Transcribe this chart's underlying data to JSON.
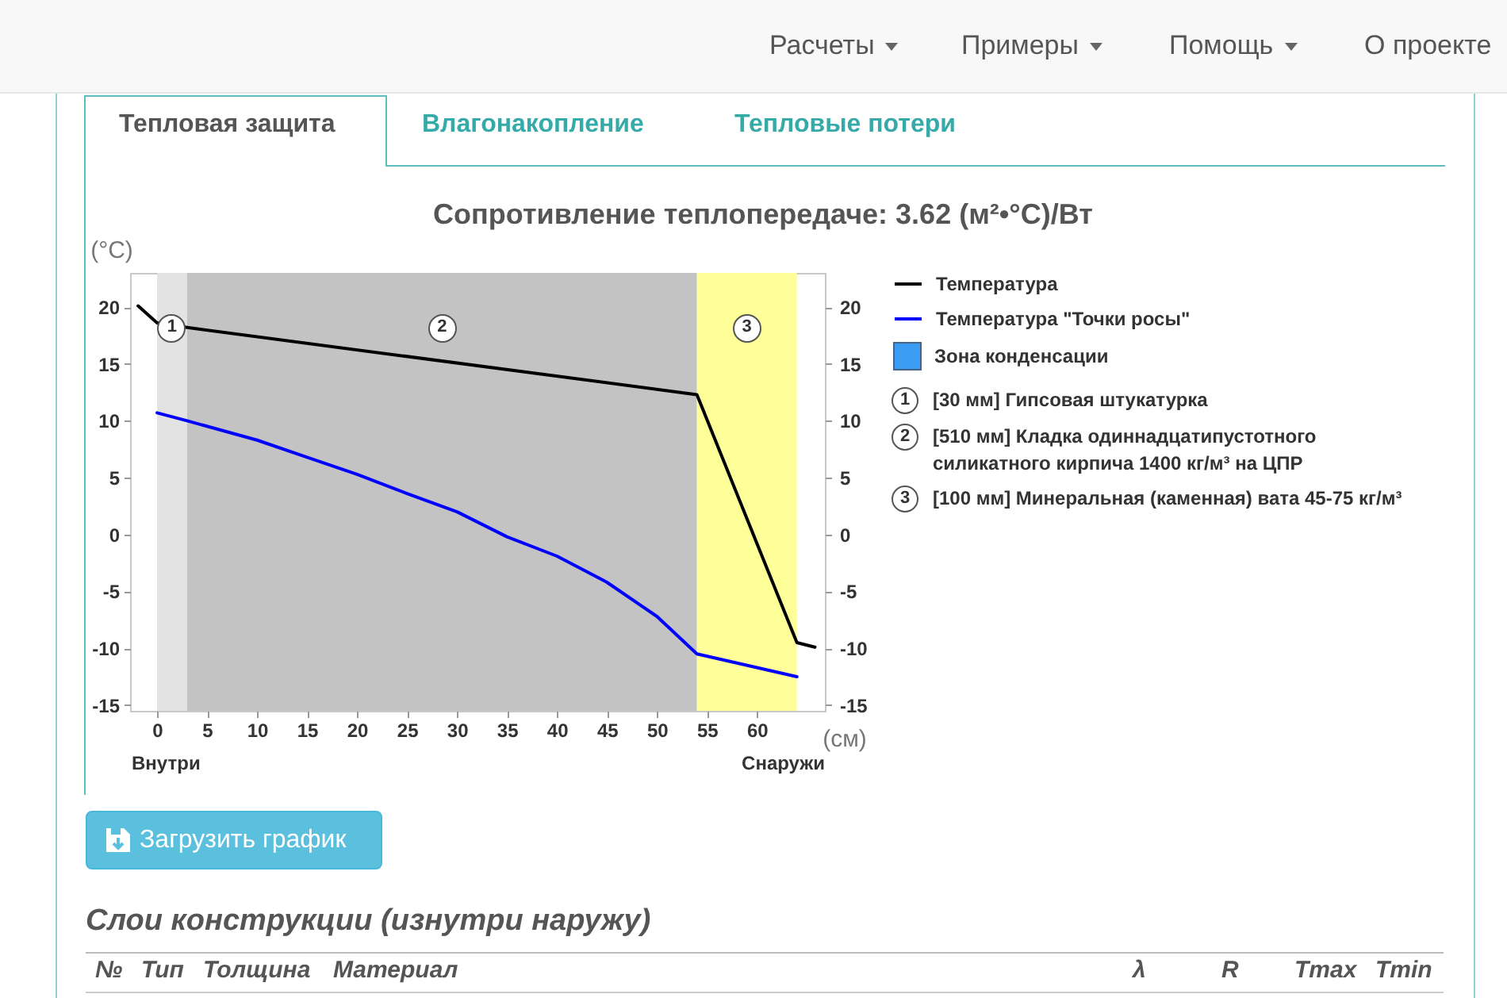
{
  "chart_data": {
    "type": "line",
    "title": "Сопротивление теплопередаче: 3.62 (м²•°C)/Вт",
    "xlabel": "(см)",
    "ylabel": "(°C)",
    "xlim": [
      -2.7,
      66.8
    ],
    "xticks": [
      0,
      5,
      10,
      15,
      20,
      25,
      30,
      35,
      40,
      45,
      50,
      55,
      60
    ],
    "ylim": [
      -15.5,
      23
    ],
    "yticks": [
      -15,
      -10,
      -5,
      0,
      5,
      10,
      15,
      20
    ],
    "y2lim": [
      -15.5,
      23
    ],
    "y2ticks": [
      -15,
      -10,
      -5,
      0,
      5,
      10,
      15,
      20
    ],
    "grid": false,
    "legend": "right",
    "series": [
      {
        "name": "Температура",
        "color": "#000000",
        "x": [
          -1.9,
          0,
          3,
          54,
          64,
          65.8
        ],
        "values": [
          20.1,
          18.6,
          18.2,
          12.3,
          -9.5,
          -9.9
        ]
      },
      {
        "name": "Температура \"Точки росы\"",
        "color": "#0000ff",
        "x": [
          0,
          3,
          10,
          15,
          20,
          25,
          30,
          35,
          40,
          45,
          50,
          54,
          64
        ],
        "values": [
          10.7,
          10.0,
          8.3,
          6.8,
          5.3,
          3.6,
          2.0,
          -0.2,
          -1.9,
          -4.2,
          -7.2,
          -10.5,
          -12.5
        ]
      },
      {
        "name": "Зона конденсации",
        "type": "area",
        "color": "#0a84f0"
      }
    ],
    "bands": [
      {
        "axis": "x",
        "from": 0,
        "to": 3,
        "label": "1",
        "color": "#e3e3e3"
      },
      {
        "axis": "x",
        "from": 3,
        "to": 54,
        "label": "2",
        "color": "#c3c3c3"
      },
      {
        "axis": "x",
        "from": 54,
        "to": 64,
        "label": "3",
        "color": "#ffff99"
      }
    ],
    "annotations": [
      "Расчеты",
      "Примеры",
      "Помощь",
      "О проекте",
      "Тепловая защита",
      "Влагонакопление",
      "Тепловые потери",
      "Внутри",
      "Снаружи",
      "[30 мм] Гипсовая штукатурка",
      "[510 мм] Кладка одиннадцатипустотного силикатного кирпича 1400 кг/м³ на ЦПР",
      "[100 мм] Минеральная (каменная) вата 45-75 кг/м³",
      "Загрузить график",
      "Слои конструкции (изнутри наружу)",
      "№",
      "Тип",
      "Толщина",
      "Материал",
      "λ",
      "R",
      "Tmax",
      "Tmin"
    ]
  }
}
